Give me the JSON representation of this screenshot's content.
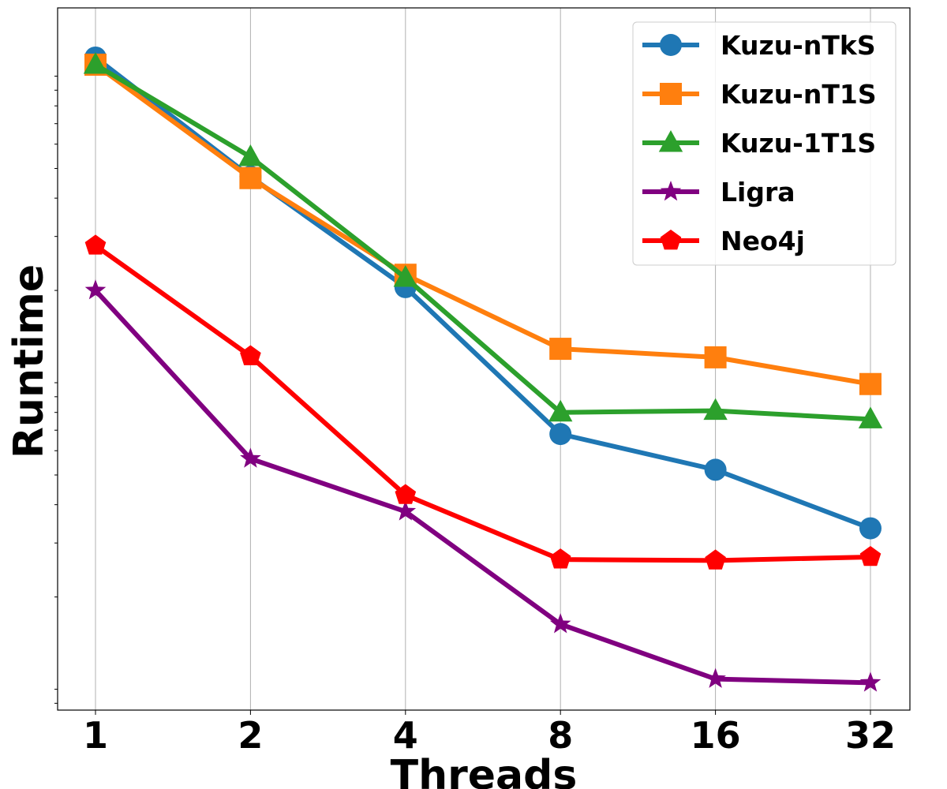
{
  "chart_data": {
    "type": "line",
    "title": "",
    "xlabel": "Threads",
    "ylabel": "Runtime",
    "y_scale": "log",
    "y_tick_labels_shown": false,
    "grid": "vertical",
    "legend_position": "top-right",
    "categories": [
      "1",
      "2",
      "4",
      "8",
      "16",
      "32"
    ],
    "ylim": [
      0.0855,
      16.7
    ],
    "series": [
      {
        "name": "Kuzu-nTkS",
        "color": "#1f77b4",
        "marker": "circle",
        "values": [
          11.5,
          4.7,
          2.05,
          0.68,
          0.52,
          0.335
        ]
      },
      {
        "name": "Kuzu-nT1S",
        "color": "#ff7f0e",
        "marker": "square",
        "values": [
          10.9,
          4.65,
          2.25,
          1.29,
          1.21,
          0.99
        ]
      },
      {
        "name": "Kuzu-1T1S",
        "color": "#2ca02c",
        "marker": "triangle",
        "values": [
          10.9,
          5.45,
          2.2,
          0.8,
          0.81,
          0.76
        ]
      },
      {
        "name": "Ligra",
        "color": "#800080",
        "marker": "star",
        "values": [
          2.0,
          0.565,
          0.38,
          0.163,
          0.108,
          0.105
        ]
      },
      {
        "name": "Neo4j",
        "color": "#ff0000",
        "marker": "pentagon",
        "values": [
          2.8,
          1.22,
          0.43,
          0.265,
          0.263,
          0.27
        ]
      }
    ]
  }
}
